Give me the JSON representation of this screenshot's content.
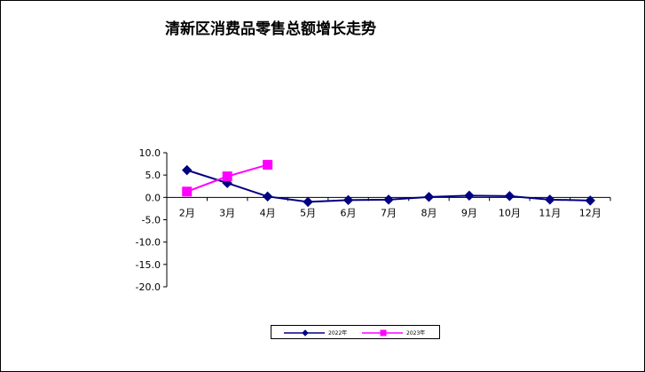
{
  "chart_data": {
    "type": "line",
    "title": "清新区消费品零售总额增长走势",
    "categories": [
      "2月",
      "3月",
      "4月",
      "5月",
      "6月",
      "7月",
      "8月",
      "9月",
      "10月",
      "11月",
      "12月"
    ],
    "series": [
      {
        "name": "2022年",
        "color": "#000080",
        "marker": "diamond",
        "values": [
          6.1,
          3.2,
          0.2,
          -1.0,
          -0.6,
          -0.5,
          0.1,
          0.4,
          0.3,
          -0.5,
          -0.7
        ]
      },
      {
        "name": "2023年",
        "color": "#ff00ff",
        "marker": "square",
        "values": [
          1.3,
          4.7,
          7.3,
          null,
          null,
          null,
          null,
          null,
          null,
          null,
          null
        ]
      }
    ],
    "ylim": [
      -20,
      10
    ],
    "yticks": [
      10,
      5,
      0,
      -5,
      -10,
      -15,
      -20
    ],
    "ytick_labels": [
      "10.0",
      "5.0",
      "0.0",
      "-5.0",
      "-10.0",
      "-15.0",
      "-20.0"
    ],
    "grid": false,
    "legend_position": "bottom"
  }
}
